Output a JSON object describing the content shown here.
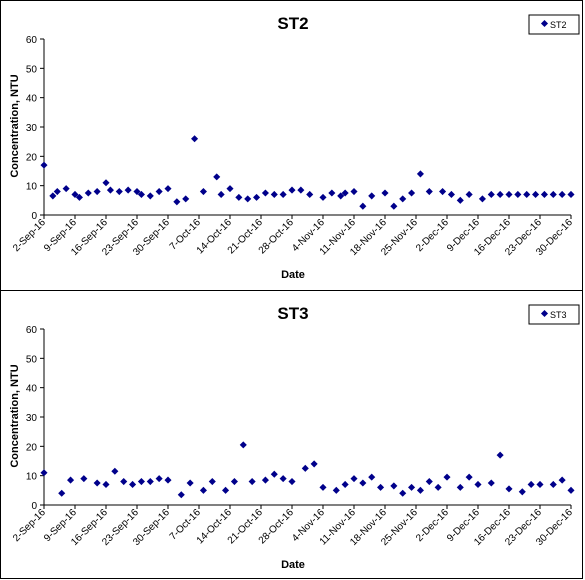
{
  "chart_data": [
    {
      "type": "scatter",
      "title": "ST2",
      "xlabel": "Date",
      "ylabel": "Concentration, NTU",
      "ylim": [
        0,
        60
      ],
      "yticks": [
        0,
        10,
        20,
        30,
        40,
        50,
        60
      ],
      "xlim": [
        "2-Sep-16",
        "30-Dec-16"
      ],
      "xtick_labels": [
        "2-Sep-16",
        "9-Sep-16",
        "16-Sep-16",
        "23-Sep-16",
        "30-Sep-16",
        "7-Oct-16",
        "14-Oct-16",
        "21-Oct-16",
        "28-Oct-16",
        "4-Nov-16",
        "11-Nov-16",
        "18-Nov-16",
        "25-Nov-16",
        "2-Dec-16",
        "9-Dec-16",
        "16-Dec-16",
        "23-Dec-16",
        "30-Dec-16"
      ],
      "grid": false,
      "legend": "top-right",
      "marker_color": "#00008b",
      "series": [
        {
          "name": "ST2",
          "x": [
            "2-Sep-16",
            "4-Sep-16",
            "5-Sep-16",
            "7-Sep-16",
            "9-Sep-16",
            "10-Sep-16",
            "12-Sep-16",
            "14-Sep-16",
            "16-Sep-16",
            "17-Sep-16",
            "19-Sep-16",
            "21-Sep-16",
            "23-Sep-16",
            "24-Sep-16",
            "26-Sep-16",
            "28-Sep-16",
            "30-Sep-16",
            "2-Oct-16",
            "4-Oct-16",
            "6-Oct-16",
            "8-Oct-16",
            "11-Oct-16",
            "12-Oct-16",
            "14-Oct-16",
            "16-Oct-16",
            "18-Oct-16",
            "20-Oct-16",
            "22-Oct-16",
            "24-Oct-16",
            "26-Oct-16",
            "28-Oct-16",
            "30-Oct-16",
            "1-Nov-16",
            "4-Nov-16",
            "6-Nov-16",
            "8-Nov-16",
            "9-Nov-16",
            "11-Nov-16",
            "13-Nov-16",
            "15-Nov-16",
            "18-Nov-16",
            "20-Nov-16",
            "22-Nov-16",
            "24-Nov-16",
            "26-Nov-16",
            "28-Nov-16",
            "1-Dec-16",
            "3-Dec-16",
            "5-Dec-16",
            "7-Dec-16",
            "10-Dec-16",
            "12-Dec-16",
            "14-Dec-16",
            "16-Dec-16",
            "18-Dec-16",
            "20-Dec-16",
            "22-Dec-16",
            "24-Dec-16",
            "26-Dec-16",
            "28-Dec-16",
            "30-Dec-16"
          ],
          "y": [
            17,
            6.5,
            8,
            9,
            7,
            6,
            7.5,
            8,
            11,
            8.5,
            8,
            8.5,
            8,
            7,
            6.5,
            8,
            9,
            4.5,
            5.5,
            26,
            8,
            13,
            7,
            9,
            6,
            5.5,
            6,
            7.5,
            7,
            7,
            8.5,
            8.5,
            7,
            6,
            7.5,
            6.5,
            7.5,
            8,
            3,
            6.5,
            7.5,
            3,
            5.5,
            7.5,
            14,
            8,
            8,
            7,
            5,
            7,
            5.5,
            7,
            7,
            7,
            7,
            7,
            7,
            7,
            7,
            7,
            7
          ]
        }
      ]
    },
    {
      "type": "scatter",
      "title": "ST3",
      "xlabel": "Date",
      "ylabel": "Concentration, NTU",
      "ylim": [
        0,
        60
      ],
      "yticks": [
        0,
        10,
        20,
        30,
        40,
        50,
        60
      ],
      "xlim": [
        "2-Sep-16",
        "30-Dec-16"
      ],
      "xtick_labels": [
        "2-Sep-16",
        "9-Sep-16",
        "16-Sep-16",
        "23-Sep-16",
        "30-Sep-16",
        "7-Oct-16",
        "14-Oct-16",
        "21-Oct-16",
        "28-Oct-16",
        "4-Nov-16",
        "11-Nov-16",
        "18-Nov-16",
        "25-Nov-16",
        "2-Dec-16",
        "9-Dec-16",
        "16-Dec-16",
        "23-Dec-16",
        "30-Dec-16"
      ],
      "grid": false,
      "legend": "top-right",
      "marker_color": "#00008b",
      "series": [
        {
          "name": "ST3",
          "x": [
            "2-Sep-16",
            "6-Sep-16",
            "8-Sep-16",
            "11-Sep-16",
            "14-Sep-16",
            "16-Sep-16",
            "18-Sep-16",
            "20-Sep-16",
            "22-Sep-16",
            "24-Sep-16",
            "26-Sep-16",
            "28-Sep-16",
            "30-Sep-16",
            "3-Oct-16",
            "5-Oct-16",
            "8-Oct-16",
            "10-Oct-16",
            "13-Oct-16",
            "15-Oct-16",
            "17-Oct-16",
            "19-Oct-16",
            "22-Oct-16",
            "24-Oct-16",
            "26-Oct-16",
            "28-Oct-16",
            "31-Oct-16",
            "2-Nov-16",
            "4-Nov-16",
            "7-Nov-16",
            "9-Nov-16",
            "11-Nov-16",
            "13-Nov-16",
            "15-Nov-16",
            "17-Nov-16",
            "20-Nov-16",
            "22-Nov-16",
            "24-Nov-16",
            "26-Nov-16",
            "28-Nov-16",
            "30-Nov-16",
            "2-Dec-16",
            "5-Dec-16",
            "7-Dec-16",
            "9-Dec-16",
            "12-Dec-16",
            "14-Dec-16",
            "16-Dec-16",
            "19-Dec-16",
            "21-Dec-16",
            "23-Dec-16",
            "26-Dec-16",
            "28-Dec-16",
            "30-Dec-16"
          ],
          "y": [
            11,
            4,
            8.5,
            9,
            7.5,
            7,
            11.5,
            8,
            7,
            8,
            8,
            9,
            8.5,
            3.5,
            7.5,
            5,
            8,
            5,
            8,
            20.5,
            8,
            8.5,
            10.5,
            9,
            8,
            12.5,
            14,
            6,
            5,
            7,
            9,
            7.5,
            9.5,
            6,
            6.5,
            4,
            6,
            5,
            8,
            6,
            9.5,
            6,
            9.5,
            7,
            7.5,
            17,
            5.5,
            4.5,
            7,
            7,
            7,
            8.5,
            5
          ]
        }
      ]
    }
  ]
}
